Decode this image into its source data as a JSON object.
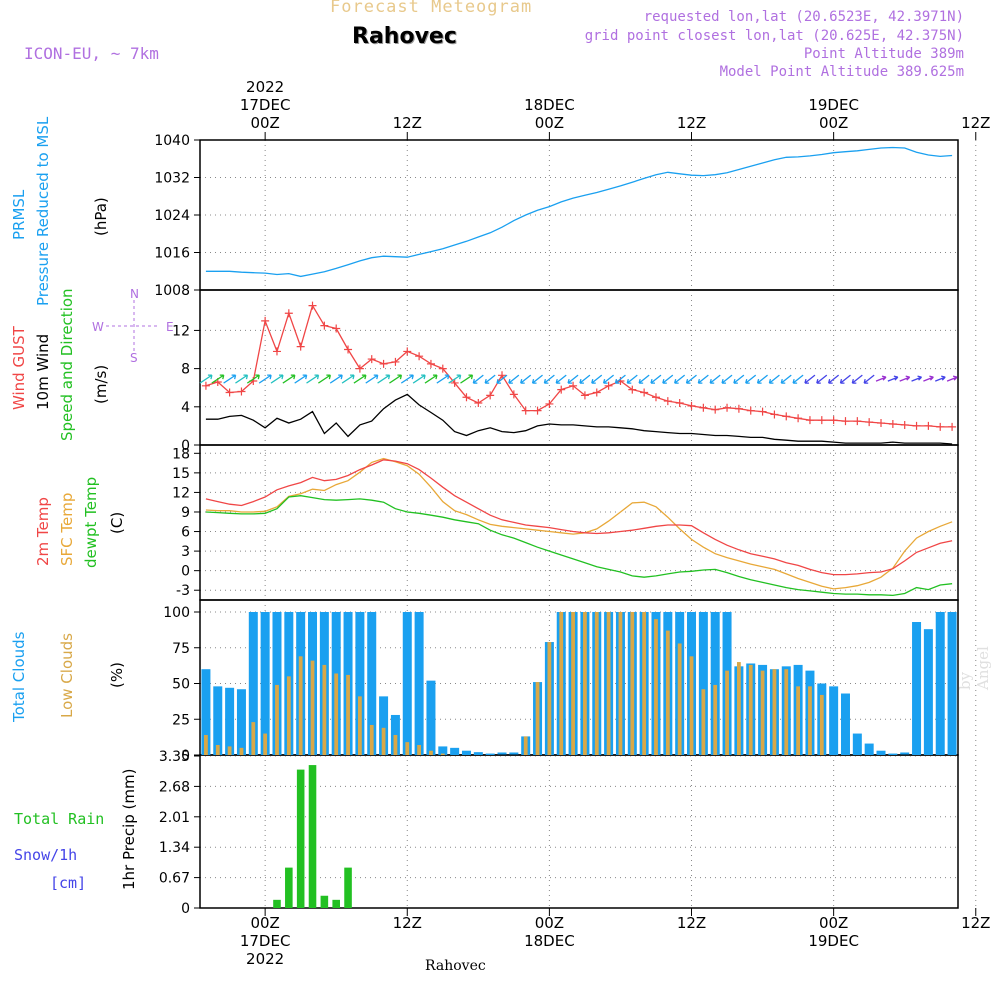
{
  "header": {
    "model": "ICON-EU, ~ 7km",
    "title": "Forecast Meteogram",
    "station": "Rahovec",
    "requested": "requested lon,lat (20.6523E, 42.3971N)",
    "grid_point": "grid point closest lon,lat (20.625E, 42.375N)",
    "point_altitude": "Point Altitude 389m",
    "model_altitude": "Model Point Altitude 389.625m"
  },
  "footer": {
    "station": "Rahovec",
    "watermark": "by Angel"
  },
  "colors": {
    "pressure": "#1aa0f0",
    "gust": "#f04646",
    "wind": "#000000",
    "temp": "#f04646",
    "sfc": "#e8a838",
    "dewpt": "#22c022",
    "total_clouds": "#1aa0f0",
    "low_clouds": "#d8a848",
    "rain": "#22c022",
    "snow": "#4444e8",
    "direction": "#b070e0"
  },
  "time_axis": {
    "top_labels": [
      {
        "hour": 0,
        "lines": [
          "2022",
          "17DEC",
          "00Z"
        ]
      },
      {
        "hour": 12,
        "lines": [
          "12Z"
        ]
      },
      {
        "hour": 24,
        "lines": [
          "18DEC",
          "00Z"
        ]
      },
      {
        "hour": 36,
        "lines": [
          "12Z"
        ]
      },
      {
        "hour": 48,
        "lines": [
          "19DEC",
          "00Z"
        ]
      },
      {
        "hour": 60,
        "lines": [
          "12Z"
        ]
      }
    ],
    "bottom_labels": [
      {
        "hour": 0,
        "lines": [
          "00Z",
          "17DEC",
          "2022"
        ]
      },
      {
        "hour": 12,
        "lines": [
          "12Z"
        ]
      },
      {
        "hour": 24,
        "lines": [
          "00Z",
          "18DEC"
        ]
      },
      {
        "hour": 36,
        "lines": [
          "12Z"
        ]
      },
      {
        "hour": 48,
        "lines": [
          "00Z",
          "19DEC"
        ]
      },
      {
        "hour": 60,
        "lines": [
          "12Z"
        ]
      }
    ]
  },
  "labels": {
    "p1": {
      "prmsl": "PRMSL",
      "reduced": "Pressure Reduced to MSL",
      "unit": "(hPa)"
    },
    "p2": {
      "gust": "Wind GUST",
      "wind": "10m Wind",
      "dir": "Speed and Direction",
      "unit": "(m/s)",
      "compass_n": "N",
      "compass_s": "S",
      "compass_w": "W",
      "compass_e": "E"
    },
    "p3": {
      "temp": "2m Temp",
      "sfc": "SFC Temp",
      "dew": "dewpt Temp",
      "unit": "(C)"
    },
    "p4": {
      "total": "Total Clouds",
      "low": "Low Clouds",
      "unit": "(%)"
    },
    "p5": {
      "rain": "Total  Rain",
      "snow": "Snow/1h",
      "snow_unit": "[cm]",
      "precip": "1hr Precip (mm)"
    }
  },
  "chart_data": [
    {
      "type": "line",
      "name": "pressure",
      "ylabel": "(hPa)",
      "ylim": [
        1008,
        1040
      ],
      "yticks": [
        1008,
        1016,
        1024,
        1032,
        1040
      ],
      "xlim": [
        -5.5,
        58.5
      ],
      "x": [
        -5,
        -4,
        -3,
        -2,
        -1,
        0,
        1,
        2,
        3,
        4,
        5,
        6,
        7,
        8,
        9,
        10,
        11,
        12,
        13,
        14,
        15,
        16,
        17,
        18,
        19,
        20,
        21,
        22,
        23,
        24,
        25,
        26,
        27,
        28,
        29,
        30,
        31,
        32,
        33,
        34,
        35,
        36,
        37,
        38,
        39,
        40,
        41,
        42,
        43,
        44,
        45,
        46,
        47,
        48,
        49,
        50,
        51,
        52,
        53,
        54,
        55,
        56,
        57,
        58
      ],
      "series": [
        {
          "name": "PRMSL",
          "values": [
            1012,
            1012,
            1012,
            1011.8,
            1011.7,
            1011.6,
            1011.3,
            1011.5,
            1010.9,
            1011.4,
            1011.9,
            1012.6,
            1013.4,
            1014.2,
            1014.9,
            1015.2,
            1015.1,
            1015.0,
            1015.6,
            1016.2,
            1016.8,
            1017.6,
            1018.4,
            1019.3,
            1020.2,
            1021.4,
            1022.8,
            1024.0,
            1025.0,
            1025.8,
            1026.8,
            1027.6,
            1028.2,
            1028.8,
            1029.5,
            1030.2,
            1031.0,
            1031.8,
            1032.6,
            1033.1,
            1032.8,
            1032.5,
            1032.4,
            1032.6,
            1033.0,
            1033.7,
            1034.4,
            1035.1,
            1035.8,
            1036.3,
            1036.4,
            1036.6,
            1036.9,
            1037.3,
            1037.5,
            1037.7,
            1038.0,
            1038.3,
            1038.4,
            1038.3,
            1037.4,
            1036.8,
            1036.5,
            1036.7
          ]
        }
      ]
    },
    {
      "type": "line",
      "name": "wind",
      "ylabel": "(m/s)",
      "ylim": [
        0,
        15.5
      ],
      "yticks": [
        0,
        4,
        8,
        12
      ],
      "xlim": [
        -5.5,
        58.5
      ],
      "x": [
        -5,
        -4,
        -3,
        -2,
        -1,
        0,
        1,
        2,
        3,
        4,
        5,
        6,
        7,
        8,
        9,
        10,
        11,
        12,
        13,
        14,
        15,
        16,
        17,
        18,
        19,
        20,
        21,
        22,
        23,
        24,
        25,
        26,
        27,
        28,
        29,
        30,
        31,
        32,
        33,
        34,
        35,
        36,
        37,
        38,
        39,
        40,
        41,
        42,
        43,
        44,
        45,
        46,
        47,
        48,
        49,
        50,
        51,
        52,
        53,
        54,
        55,
        56,
        57,
        58
      ],
      "series": [
        {
          "name": "Wind GUST",
          "values": [
            6.2,
            6.6,
            5.5,
            5.6,
            6.7,
            13.0,
            9.8,
            13.8,
            10.3,
            14.6,
            12.5,
            12.2,
            10.0,
            8.0,
            9.0,
            8.5,
            8.7,
            9.8,
            9.3,
            8.5,
            8.0,
            6.5,
            5.0,
            4.4,
            5.2,
            7.3,
            5.3,
            3.6,
            3.6,
            4.3,
            5.8,
            6.2,
            5.2,
            5.5,
            6.2,
            6.7,
            5.8,
            5.5,
            5.0,
            4.6,
            4.4,
            4.1,
            3.9,
            3.7,
            3.9,
            3.8,
            3.6,
            3.5,
            3.2,
            3.0,
            2.8,
            2.6,
            2.6,
            2.6,
            2.5,
            2.5,
            2.4,
            2.3,
            2.2,
            2.1,
            2.0,
            2.0,
            1.9,
            1.9
          ]
        },
        {
          "name": "10m Wind",
          "values": [
            2.7,
            2.7,
            3.0,
            3.1,
            2.6,
            1.8,
            2.8,
            2.3,
            2.7,
            3.5,
            1.2,
            2.3,
            0.9,
            2.1,
            2.5,
            3.8,
            4.7,
            5.3,
            4.2,
            3.4,
            2.6,
            1.4,
            1.0,
            1.5,
            1.8,
            1.4,
            1.3,
            1.5,
            2.0,
            2.2,
            2.1,
            2.1,
            2.0,
            1.9,
            1.9,
            1.8,
            1.7,
            1.5,
            1.4,
            1.3,
            1.2,
            1.2,
            1.1,
            1.0,
            1.0,
            0.9,
            0.8,
            0.8,
            0.6,
            0.5,
            0.4,
            0.4,
            0.4,
            0.3,
            0.2,
            0.2,
            0.2,
            0.2,
            0.3,
            0.2,
            0.2,
            0.2,
            0.2,
            0.1
          ]
        }
      ]
    },
    {
      "type": "line",
      "name": "temperature",
      "ylabel": "(C)",
      "ylim": [
        -4.5,
        18.2
      ],
      "yticks": [
        -3,
        0,
        3,
        6,
        9,
        12,
        15,
        18
      ],
      "xlim": [
        -5.5,
        58.5
      ],
      "x": [
        -5,
        -4,
        -3,
        -2,
        -1,
        0,
        1,
        2,
        3,
        4,
        5,
        6,
        7,
        8,
        9,
        10,
        11,
        12,
        13,
        14,
        15,
        16,
        17,
        18,
        19,
        20,
        21,
        22,
        23,
        24,
        25,
        26,
        27,
        28,
        29,
        30,
        31,
        32,
        33,
        34,
        35,
        36,
        37,
        38,
        39,
        40,
        41,
        42,
        43,
        44,
        45,
        46,
        47,
        48,
        49,
        50,
        51,
        52,
        53,
        54,
        55,
        56,
        57,
        58
      ],
      "series": [
        {
          "name": "2m Temp",
          "values": [
            11,
            10.6,
            10.2,
            10.0,
            10.6,
            11.3,
            12.4,
            13.0,
            13.5,
            14.3,
            13.8,
            14.0,
            14.6,
            15.5,
            16.2,
            17.0,
            16.8,
            16.4,
            15.5,
            14.2,
            12.8,
            11.5,
            10.5,
            9.5,
            8.5,
            7.8,
            7.4,
            7.0,
            6.8,
            6.6,
            6.3,
            6.0,
            5.8,
            5.7,
            5.8,
            6.0,
            6.2,
            6.5,
            6.8,
            7.0,
            7.0,
            6.9,
            5.8,
            4.8,
            3.9,
            3.2,
            2.6,
            2.2,
            1.8,
            1.2,
            0.8,
            0.2,
            -0.3,
            -0.6,
            -0.6,
            -0.5,
            -0.3,
            -0.2,
            0.3,
            1.5,
            2.8,
            3.5,
            4.2,
            4.6
          ]
        },
        {
          "name": "SFC Temp",
          "values": [
            9.3,
            9.2,
            9.2,
            9.0,
            9.0,
            9.1,
            9.8,
            11.4,
            11.8,
            12.5,
            12.3,
            13.2,
            13.8,
            15.1,
            16.6,
            17.2,
            16.7,
            16.1,
            14.8,
            12.8,
            10.6,
            9.2,
            8.6,
            7.8,
            7.1,
            6.8,
            6.6,
            6.4,
            6.2,
            6.0,
            5.8,
            5.6,
            5.8,
            6.4,
            7.6,
            9.0,
            10.4,
            10.5,
            9.8,
            8.2,
            6.4,
            4.8,
            3.6,
            2.6,
            2.0,
            1.5,
            1.0,
            0.6,
            0.2,
            -0.5,
            -1.2,
            -1.8,
            -2.4,
            -2.8,
            -2.6,
            -2.3,
            -1.8,
            -1.0,
            0.4,
            3.0,
            5.0,
            6.0,
            6.8,
            7.5
          ]
        },
        {
          "name": "dewpt Temp",
          "values": [
            9.0,
            8.9,
            8.8,
            8.7,
            8.7,
            8.8,
            9.5,
            11.3,
            11.5,
            11.2,
            10.9,
            10.8,
            10.9,
            11.0,
            10.8,
            10.5,
            9.5,
            9.0,
            8.8,
            8.5,
            8.2,
            7.8,
            7.5,
            7.2,
            6.2,
            5.5,
            5.0,
            4.3,
            3.6,
            3.0,
            2.4,
            1.8,
            1.2,
            0.6,
            0.2,
            -0.2,
            -0.8,
            -1.0,
            -0.8,
            -0.5,
            -0.2,
            -0.1,
            0.1,
            0.2,
            -0.3,
            -0.9,
            -1.4,
            -1.8,
            -2.2,
            -2.6,
            -2.9,
            -3.1,
            -3.3,
            -3.5,
            -3.6,
            -3.6,
            -3.7,
            -3.7,
            -3.8,
            -3.5,
            -2.6,
            -2.9,
            -2.2,
            -2.0
          ]
        }
      ]
    },
    {
      "type": "bar",
      "name": "clouds",
      "ylabel": "(%)",
      "ylim": [
        0,
        100
      ],
      "yticks": [
        0,
        25,
        50,
        75,
        100
      ],
      "xlim": [
        -5.5,
        58.5
      ],
      "x": [
        -5,
        -4,
        -3,
        -2,
        -1,
        0,
        1,
        2,
        3,
        4,
        5,
        6,
        7,
        8,
        9,
        10,
        11,
        12,
        13,
        14,
        15,
        16,
        17,
        18,
        19,
        20,
        21,
        22,
        23,
        24,
        25,
        26,
        27,
        28,
        29,
        30,
        31,
        32,
        33,
        34,
        35,
        36,
        37,
        38,
        39,
        40,
        41,
        42,
        43,
        44,
        45,
        46,
        47,
        48,
        49,
        50,
        51,
        52,
        53,
        54,
        55,
        56,
        57,
        58
      ],
      "series": [
        {
          "name": "Total Clouds",
          "values": [
            60,
            48,
            47,
            46,
            100,
            100,
            100,
            100,
            100,
            100,
            100,
            100,
            100,
            100,
            100,
            41,
            28,
            100,
            100,
            52,
            6,
            5,
            3,
            2,
            1,
            0,
            0,
            13,
            51,
            79,
            100,
            100,
            100,
            100,
            100,
            100,
            100,
            100,
            100,
            100,
            100,
            100,
            100,
            100,
            100,
            62,
            64,
            63,
            60,
            62,
            63,
            59,
            50,
            48,
            43,
            15,
            8,
            3,
            1,
            0,
            93,
            88,
            100,
            100
          ]
        },
        {
          "name": "Low Clouds",
          "values": [
            14,
            7,
            6,
            5,
            23,
            15,
            49,
            55,
            69,
            66,
            63,
            57,
            56,
            41,
            21,
            19,
            14,
            9,
            7,
            3,
            1,
            0,
            0,
            0,
            0,
            0,
            0,
            13,
            51,
            79,
            100,
            100,
            100,
            100,
            100,
            100,
            100,
            100,
            95,
            87,
            78,
            69,
            46,
            49,
            59,
            65,
            63,
            59,
            60,
            60,
            48,
            48,
            42,
            0,
            0,
            0,
            0,
            0,
            0,
            0,
            0,
            0,
            0,
            0
          ]
        }
      ]
    },
    {
      "type": "bar",
      "name": "precip",
      "ylabel": "1hr Precip (mm)",
      "ylim": [
        0,
        3.35
      ],
      "yticks": [
        0,
        0.67,
        1.34,
        2.01,
        2.68,
        3.35
      ],
      "xlim": [
        -5.5,
        58.5
      ],
      "x": [
        1,
        2,
        3,
        4,
        5,
        6,
        7,
        8
      ],
      "series": [
        {
          "name": "Total Rain",
          "values": [
            0.18,
            0.89,
            3.05,
            3.15,
            0.27,
            0.18,
            0.89,
            0.0
          ]
        }
      ]
    }
  ]
}
